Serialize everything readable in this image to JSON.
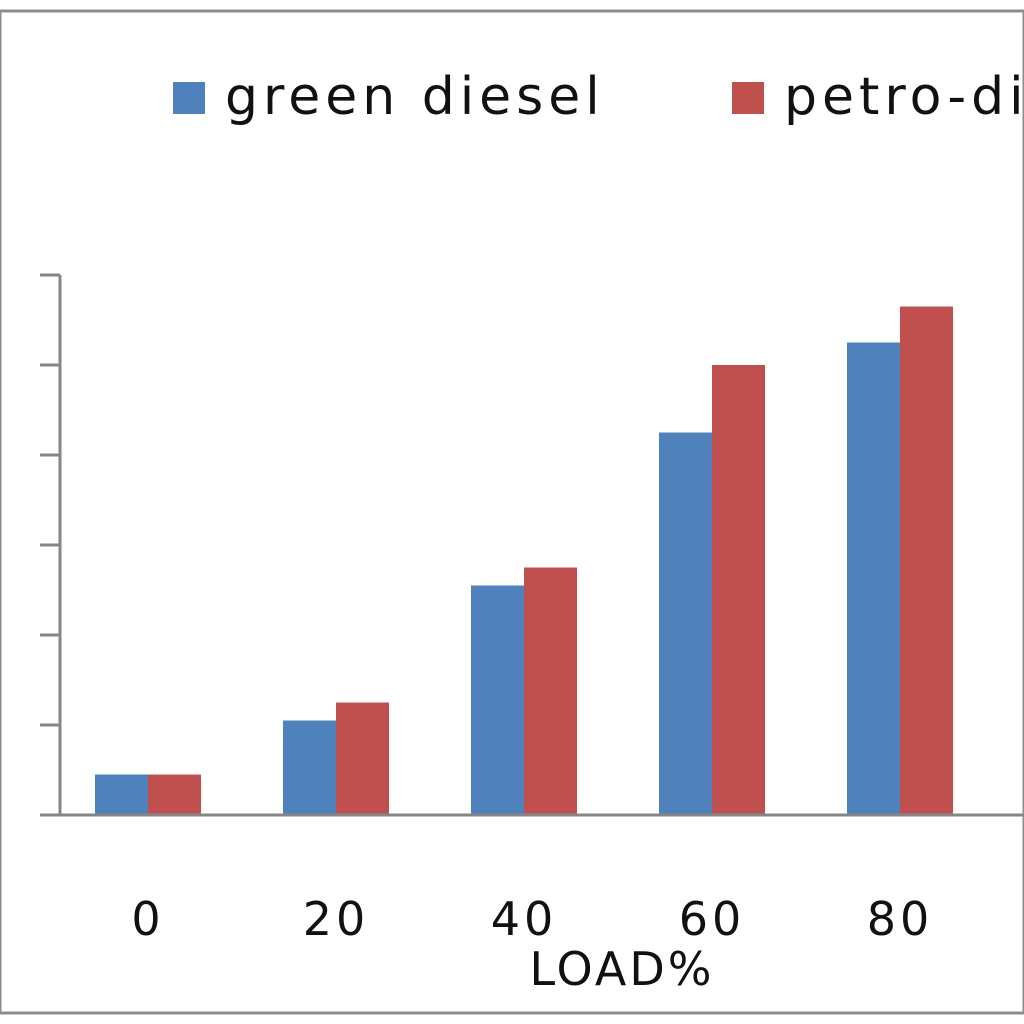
{
  "chart_data": {
    "type": "bar",
    "categories": [
      "0",
      "20",
      "40",
      "60",
      "80"
    ],
    "series": [
      {
        "name": "green diesel",
        "values": [
          0.45,
          1.05,
          2.55,
          4.25,
          5.25
        ],
        "color": "#4f81bd"
      },
      {
        "name": "petro-diesel",
        "values": [
          0.45,
          1.25,
          2.75,
          5.0,
          5.65
        ],
        "color": "#c0504d"
      }
    ],
    "title": "",
    "xlabel": "LOAD%",
    "ylabel": "",
    "ylim": [
      0,
      6
    ],
    "grid": false,
    "legend_position": "top"
  }
}
